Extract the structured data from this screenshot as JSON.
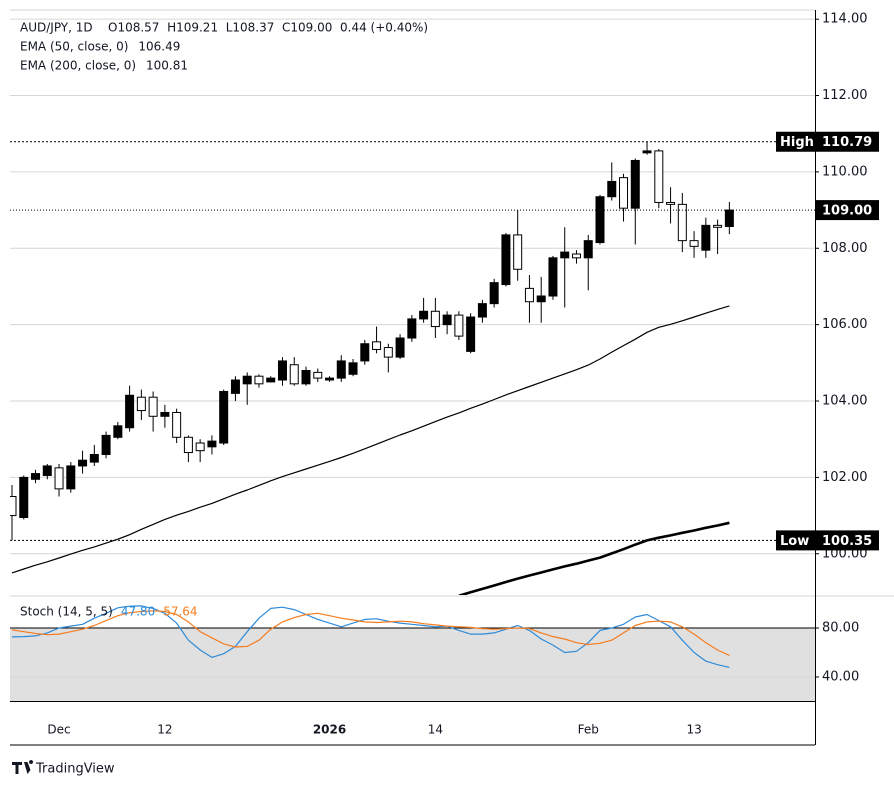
{
  "chart_data": [
    {
      "type": "candlestick",
      "title": "AUD/JPY, 1D",
      "info": "O108.57  H109.21  L108.37  C109.00  0.44 (+0.40%)",
      "categories": [
        null,
        null,
        null,
        null,
        "Dec",
        null,
        null,
        null,
        null,
        null,
        null,
        null,
        null,
        "12",
        null,
        null,
        null,
        null,
        null,
        null,
        null,
        null,
        null,
        null,
        null,
        null,
        null,
        "2026",
        null,
        null,
        null,
        null,
        null,
        null,
        null,
        null,
        "14",
        null,
        null,
        null,
        null,
        null,
        null,
        null,
        null,
        null,
        null,
        null,
        null,
        "Feb",
        null,
        null,
        null,
        null,
        null,
        null,
        null,
        null,
        "13",
        null,
        null,
        null
      ],
      "open": [
        101.5,
        100.95,
        101.95,
        102.05,
        102.25,
        101.7,
        102.3,
        102.4,
        102.6,
        103.05,
        103.3,
        104.1,
        104.1,
        103.6,
        103.7,
        103.05,
        102.9,
        102.8,
        102.9,
        104.2,
        104.45,
        104.65,
        104.5,
        104.55,
        104.95,
        104.45,
        104.75,
        104.55,
        104.6,
        104.7,
        105.05,
        105.55,
        105.4,
        105.15,
        105.65,
        106.15,
        106.35,
        106.0,
        106.25,
        105.3,
        106.2,
        106.55,
        107.05,
        108.35,
        106.95,
        106.6,
        106.75,
        107.75,
        107.85,
        107.75,
        108.15,
        109.35,
        109.85,
        109.05,
        110.5,
        110.55,
        109.2,
        109.15,
        108.2,
        107.95,
        108.6,
        108.57
      ],
      "high": [
        101.8,
        102.05,
        102.2,
        102.35,
        102.35,
        102.4,
        102.7,
        102.85,
        103.2,
        103.45,
        104.4,
        104.3,
        104.25,
        103.9,
        103.8,
        103.1,
        103.0,
        103.1,
        104.3,
        104.65,
        104.75,
        104.7,
        104.65,
        105.15,
        105.15,
        104.9,
        104.85,
        104.65,
        105.2,
        105.1,
        105.6,
        105.95,
        105.5,
        105.75,
        106.25,
        106.7,
        106.7,
        106.35,
        106.35,
        106.3,
        106.65,
        107.2,
        108.4,
        109.0,
        107.3,
        107.25,
        107.8,
        108.55,
        107.95,
        108.35,
        109.4,
        110.25,
        109.95,
        110.35,
        110.79,
        110.6,
        109.6,
        109.45,
        108.45,
        108.8,
        108.75,
        109.21
      ],
      "low": [
        100.35,
        100.9,
        101.85,
        101.95,
        101.5,
        101.6,
        102.1,
        102.3,
        102.5,
        103.0,
        103.2,
        103.5,
        103.2,
        103.3,
        102.9,
        102.4,
        102.4,
        102.6,
        102.85,
        104.0,
        103.9,
        104.35,
        104.5,
        104.4,
        104.4,
        104.4,
        104.5,
        104.5,
        104.5,
        104.65,
        104.95,
        105.25,
        104.75,
        105.1,
        105.55,
        106.05,
        105.65,
        105.75,
        105.6,
        105.25,
        106.05,
        106.45,
        107.0,
        107.15,
        106.05,
        106.05,
        106.65,
        106.45,
        107.6,
        106.9,
        108.1,
        109.25,
        108.7,
        108.1,
        110.45,
        109.05,
        108.65,
        107.9,
        107.75,
        107.75,
        107.85,
        108.37
      ],
      "close": [
        101.0,
        102.0,
        102.1,
        102.3,
        101.7,
        102.3,
        102.45,
        102.6,
        103.1,
        103.35,
        104.15,
        103.75,
        103.6,
        103.7,
        103.05,
        102.65,
        102.7,
        102.95,
        104.25,
        104.55,
        104.65,
        104.45,
        104.6,
        105.05,
        104.45,
        104.8,
        104.6,
        104.6,
        105.05,
        105.0,
        105.5,
        105.35,
        105.15,
        105.65,
        106.15,
        106.35,
        105.95,
        106.25,
        105.7,
        106.2,
        106.55,
        107.1,
        108.35,
        107.45,
        106.6,
        106.75,
        107.75,
        107.9,
        107.75,
        108.2,
        109.35,
        109.75,
        109.05,
        110.3,
        110.55,
        109.2,
        109.15,
        108.2,
        108.05,
        108.6,
        108.55,
        109.0
      ],
      "up_color": "#000000",
      "down_color": "#ffffff",
      "border_color": "#000000",
      "series": [
        {
          "name": "EMA (50, close, 0)",
          "color": "#000000",
          "width": 1.2,
          "values": [
            99.5,
            99.6,
            99.7,
            99.79,
            99.89,
            99.99,
            100.09,
            100.18,
            100.28,
            100.38,
            100.5,
            100.64,
            100.77,
            100.9,
            101.01,
            101.11,
            101.22,
            101.32,
            101.44,
            101.56,
            101.67,
            101.79,
            101.91,
            102.02,
            102.12,
            102.22,
            102.32,
            102.42,
            102.52,
            102.63,
            102.75,
            102.87,
            102.99,
            103.11,
            103.22,
            103.34,
            103.46,
            103.58,
            103.69,
            103.81,
            103.92,
            104.04,
            104.16,
            104.27,
            104.38,
            104.49,
            104.6,
            104.71,
            104.82,
            104.94,
            105.1,
            105.28,
            105.45,
            105.62,
            105.8,
            105.93,
            106.01,
            106.1,
            106.2,
            106.3,
            106.4,
            106.49
          ]
        },
        {
          "name": "EMA (200, close, 0)",
          "color": "#000000",
          "width": 2.6,
          "values": [
            null,
            null,
            null,
            null,
            null,
            null,
            null,
            null,
            null,
            null,
            null,
            null,
            null,
            null,
            null,
            null,
            null,
            null,
            null,
            null,
            null,
            null,
            null,
            null,
            null,
            null,
            null,
            null,
            null,
            null,
            null,
            null,
            null,
            null,
            null,
            null,
            null,
            null,
            98.9,
            98.99,
            99.08,
            99.17,
            99.26,
            99.35,
            99.43,
            99.51,
            99.59,
            99.67,
            99.74,
            99.82,
            99.9,
            100.01,
            100.12,
            100.24,
            100.35,
            100.42,
            100.48,
            100.55,
            100.61,
            100.68,
            100.74,
            100.81
          ]
        }
      ],
      "high_level": {
        "label": "High",
        "value": 110.79
      },
      "low_level": {
        "label": "Low",
        "value": 100.35
      },
      "last_price": {
        "value": 109,
        "label": "109.00"
      },
      "ylim": [
        98.92,
        114.24
      ],
      "yticks": [
        {
          "value": 100,
          "label": "100.00"
        },
        {
          "value": 102,
          "label": "102.00"
        },
        {
          "value": 104,
          "label": "104.00"
        },
        {
          "value": 106,
          "label": "106.00"
        },
        {
          "value": 108,
          "label": "108.00"
        },
        {
          "value": 110,
          "label": "110.00"
        },
        {
          "value": 112,
          "label": "112.00"
        },
        {
          "value": 114,
          "label": "114.00"
        }
      ],
      "grid": true
    },
    {
      "type": "line",
      "title": "Stoch (14, 5, 5)",
      "series": [
        {
          "color": "#2e8ad8",
          "last_label": "47.80",
          "values": [
            72.7,
            73.0,
            73.5,
            76,
            80,
            81.5,
            83,
            88,
            92,
            96.5,
            97.8,
            98,
            96,
            92,
            84,
            70,
            62,
            56,
            59,
            65,
            77,
            88,
            96,
            97,
            95,
            91,
            87,
            84,
            81,
            84,
            87,
            87.5,
            85.5,
            84,
            83,
            82,
            81,
            81.5,
            78,
            75,
            75,
            76,
            79,
            82,
            78,
            71,
            66,
            60,
            61,
            68,
            78,
            80,
            83,
            89,
            91,
            86,
            81,
            70,
            60,
            53,
            50,
            47.8
          ]
        },
        {
          "color": "#f57c1f",
          "last_label": "57.64",
          "values": [
            78.4,
            77,
            75.5,
            74.5,
            75,
            77,
            79,
            82,
            86,
            90,
            92.5,
            93.5,
            94,
            93.5,
            91,
            85,
            77,
            72,
            67,
            64.5,
            65,
            70,
            79,
            85,
            88.5,
            91,
            92,
            90,
            88,
            86.5,
            85,
            84.5,
            85,
            85.5,
            85,
            83.5,
            82.5,
            81.5,
            81,
            80.5,
            79.5,
            79,
            79.5,
            80,
            79.5,
            76,
            73,
            71,
            68,
            66.5,
            67.5,
            70,
            76,
            82,
            85,
            85.5,
            85,
            81,
            75,
            68,
            62,
            57.64
          ]
        }
      ],
      "band": [
        20,
        80
      ],
      "band_color": "#e0e0e0",
      "ylim": [
        11.4,
        105.3
      ],
      "yticks": [
        {
          "value": 40,
          "label": "40.00"
        },
        {
          "value": 80,
          "label": "80.00"
        }
      ],
      "grid": true
    }
  ],
  "footer": {
    "brand": "TradingView"
  }
}
